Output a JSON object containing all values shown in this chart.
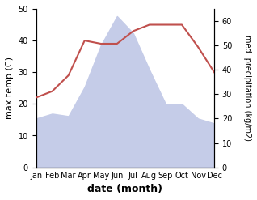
{
  "months": [
    "Jan",
    "Feb",
    "Mar",
    "Apr",
    "May",
    "Jun",
    "Jul",
    "Aug",
    "Sep",
    "Oct",
    "Nov",
    "Dec"
  ],
  "month_indices": [
    1,
    2,
    3,
    4,
    5,
    6,
    7,
    8,
    9,
    10,
    11,
    12
  ],
  "temperature": [
    22,
    24,
    29,
    40,
    39,
    39,
    43,
    45,
    45,
    45,
    38,
    30
  ],
  "precipitation": [
    20,
    22,
    21,
    33,
    50,
    62,
    55,
    40,
    26,
    26,
    20,
    18
  ],
  "temp_color": "#c0504d",
  "precip_fill_color": "#c5cce8",
  "temp_ylim": [
    0,
    50
  ],
  "precip_ylim": [
    0,
    65
  ],
  "temp_yticks": [
    0,
    10,
    20,
    30,
    40,
    50
  ],
  "precip_yticks": [
    0,
    10,
    20,
    30,
    40,
    50,
    60
  ],
  "xlabel": "date (month)",
  "ylabel_left": "max temp (C)",
  "ylabel_right": "med. precipitation (kg/m2)",
  "background_color": "#ffffff"
}
